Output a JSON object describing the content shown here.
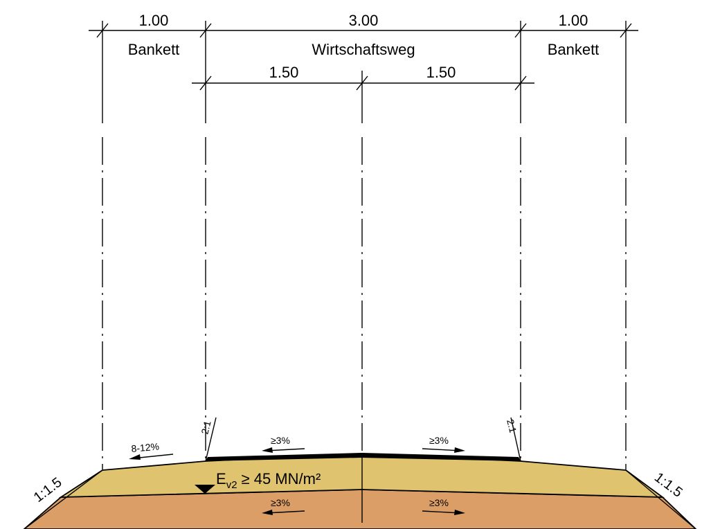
{
  "dimensions": {
    "left_bankett_width": "1.00",
    "left_bankett_label": "Bankett",
    "road_width": "3.00",
    "road_label": "Wirtschaftsweg",
    "left_half_width": "1.50",
    "right_half_width": "1.50",
    "right_bankett_width": "1.00",
    "right_bankett_label": "Bankett"
  },
  "slopes": {
    "bankett_left": "8-12%",
    "road_left_top": "≥3%",
    "road_right_top": "≥3%",
    "layer_left": "≥3%",
    "layer_right": "≥3%",
    "embankment_left": "1:1.5",
    "embankment_right": "1:1.5",
    "edge_left": "2:1",
    "edge_right": "2:1"
  },
  "bearing": {
    "prefix": "E",
    "subscript": "v2",
    "rest": "≥  45 MN/m²"
  },
  "colors": {
    "upper_layer": "#dfc36f",
    "lower_layer": "#db9e67",
    "surface": "#000000"
  }
}
